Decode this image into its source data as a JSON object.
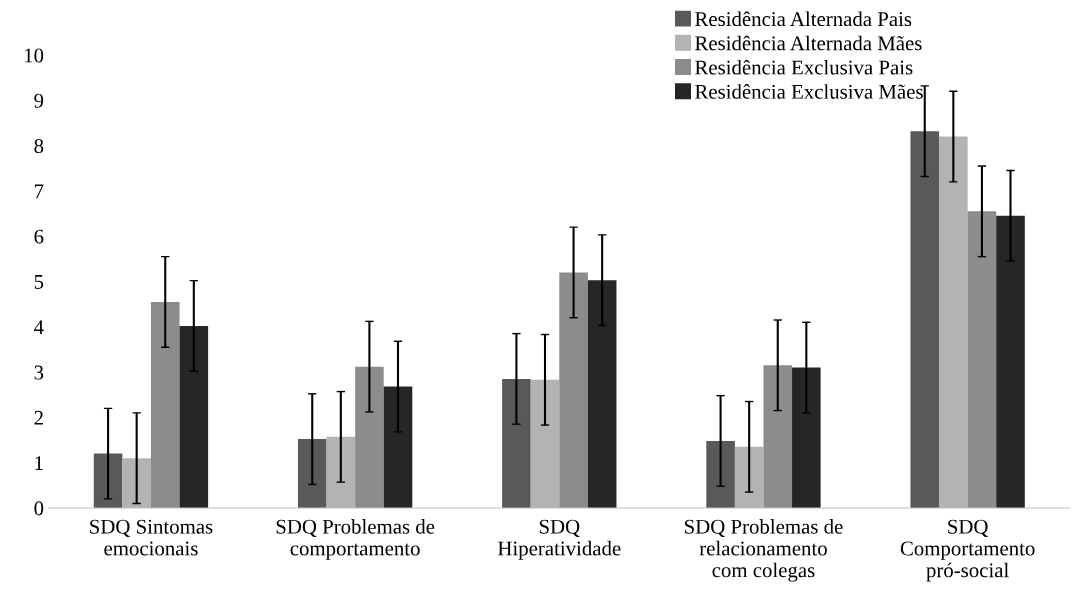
{
  "chart_data": {
    "type": "bar",
    "categories": [
      "SDQ Sintomas\nemocionais",
      "SDQ Problemas de\ncomportamento",
      "SDQ\nHiperatividade",
      "SDQ Problemas de\nrelacionamento\ncom colegas",
      "SDQ\nComportamento\npró-social"
    ],
    "series": [
      {
        "name": "Residência Alternada Pais",
        "color": "#595959",
        "values": [
          1.2,
          1.52,
          2.85,
          1.48,
          8.32
        ],
        "errors": [
          1,
          1,
          1,
          1,
          1
        ]
      },
      {
        "name": "Residência Alternada Mães",
        "color": "#b3b3b3",
        "values": [
          1.1,
          1.57,
          2.83,
          1.35,
          8.2
        ],
        "errors": [
          1,
          1,
          1,
          1,
          1
        ]
      },
      {
        "name": "Residência Exclusiva Pais",
        "color": "#8c8c8c",
        "values": [
          4.55,
          3.12,
          5.2,
          3.15,
          6.55
        ],
        "errors": [
          1,
          1,
          1,
          1,
          1
        ]
      },
      {
        "name": "Residência Exclusiva Mães",
        "color": "#262626",
        "values": [
          4.02,
          2.68,
          5.03,
          3.1,
          6.45
        ],
        "errors": [
          1,
          1,
          1,
          1,
          1
        ]
      }
    ],
    "ylim": [
      0,
      10
    ],
    "yticks": [
      0,
      1,
      2,
      3,
      4,
      5,
      6,
      7,
      8,
      9,
      10
    ],
    "grid": false,
    "legend": "top right"
  }
}
